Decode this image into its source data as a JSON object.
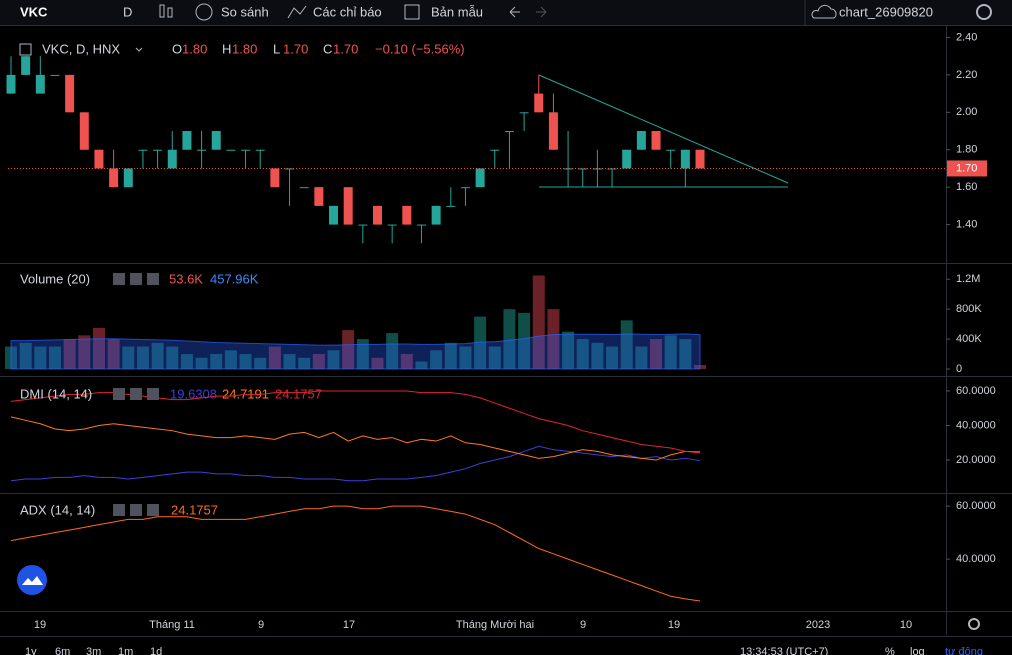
{
  "toolbar": {
    "symbol": "VKC",
    "interval": "D",
    "compare": "So sánh",
    "indicators": "Các chỉ báo",
    "templates": "Bản mẫu",
    "chart_name": "chart_26909820"
  },
  "price_pane": {
    "title": "VKC, D, HNX",
    "ohlc": [
      {
        "key": "O",
        "value": "1.80"
      },
      {
        "key": "H",
        "value": "1.80"
      },
      {
        "key": "L",
        "value": "1.70"
      },
      {
        "key": "C",
        "value": "1.70"
      }
    ],
    "change": "−0.10 (−5.56%)",
    "ylim": [
      1.2,
      2.44
    ],
    "yticks": [
      {
        "value": 2.4,
        "label": "2.40"
      },
      {
        "value": 2.2,
        "label": "2.20"
      },
      {
        "value": 2,
        "label": "2.00"
      },
      {
        "value": 1.8,
        "label": "1.80"
      },
      {
        "value": 1.6,
        "label": "1.60"
      },
      {
        "value": 1.4,
        "label": "1.40"
      }
    ],
    "last_price": "1.70",
    "up_color": "#26a69a",
    "down_color": "#ef5350",
    "candles": [
      {
        "open": 2.1,
        "high": 2.3,
        "low": 2.1,
        "close": 2.2
      },
      {
        "open": 2.2,
        "high": 2.3,
        "low": 2.2,
        "close": 2.3
      },
      {
        "open": 2.1,
        "high": 2.3,
        "low": 2.1,
        "close": 2.2
      },
      {
        "open": 2.2,
        "high": 2.2,
        "low": 2.2,
        "close": 2.2
      },
      {
        "open": 2.2,
        "high": 2.2,
        "low": 2.0,
        "close": 2.0
      },
      {
        "open": 2.0,
        "high": 2.0,
        "low": 1.8,
        "close": 1.8
      },
      {
        "open": 1.8,
        "high": 1.8,
        "low": 1.7,
        "close": 1.7
      },
      {
        "open": 1.7,
        "high": 1.8,
        "low": 1.6,
        "close": 1.6
      },
      {
        "open": 1.6,
        "high": 1.7,
        "low": 1.6,
        "close": 1.7
      },
      {
        "open": 1.8,
        "high": 1.8,
        "low": 1.7,
        "close": 1.8
      },
      {
        "open": 1.8,
        "high": 1.8,
        "low": 1.7,
        "close": 1.8
      },
      {
        "open": 1.7,
        "high": 1.9,
        "low": 1.7,
        "close": 1.8
      },
      {
        "open": 1.8,
        "high": 1.9,
        "low": 1.8,
        "close": 1.9
      },
      {
        "open": 1.8,
        "high": 1.9,
        "low": 1.7,
        "close": 1.8
      },
      {
        "open": 1.8,
        "high": 1.9,
        "low": 1.8,
        "close": 1.9
      },
      {
        "open": 1.8,
        "high": 1.8,
        "low": 1.8,
        "close": 1.8
      },
      {
        "open": 1.8,
        "high": 1.8,
        "low": 1.7,
        "close": 1.8
      },
      {
        "open": 1.8,
        "high": 1.8,
        "low": 1.7,
        "close": 1.8
      },
      {
        "open": 1.7,
        "high": 1.7,
        "low": 1.6,
        "close": 1.6
      },
      {
        "open": 1.7,
        "high": 1.7,
        "low": 1.5,
        "close": 1.7
      },
      {
        "open": 1.6,
        "high": 1.6,
        "low": 1.6,
        "close": 1.6
      },
      {
        "open": 1.6,
        "high": 1.6,
        "low": 1.5,
        "close": 1.5
      },
      {
        "open": 1.4,
        "high": 1.5,
        "low": 1.4,
        "close": 1.5
      },
      {
        "open": 1.6,
        "high": 1.6,
        "low": 1.4,
        "close": 1.4
      },
      {
        "open": 1.4,
        "high": 1.4,
        "low": 1.3,
        "close": 1.4
      },
      {
        "open": 1.5,
        "high": 1.5,
        "low": 1.4,
        "close": 1.4
      },
      {
        "open": 1.4,
        "high": 1.4,
        "low": 1.3,
        "close": 1.4
      },
      {
        "open": 1.5,
        "high": 1.5,
        "low": 1.4,
        "close": 1.4
      },
      {
        "open": 1.4,
        "high": 1.4,
        "low": 1.3,
        "close": 1.4
      },
      {
        "open": 1.4,
        "high": 1.5,
        "low": 1.4,
        "close": 1.5
      },
      {
        "open": 1.5,
        "high": 1.6,
        "low": 1.5,
        "close": 1.5
      },
      {
        "open": 1.6,
        "high": 1.6,
        "low": 1.5,
        "close": 1.6
      },
      {
        "open": 1.6,
        "high": 1.7,
        "low": 1.6,
        "close": 1.7
      },
      {
        "open": 1.8,
        "high": 1.8,
        "low": 1.7,
        "close": 1.8
      },
      {
        "open": 1.9,
        "high": 1.9,
        "low": 1.7,
        "close": 1.9
      },
      {
        "open": 2.0,
        "high": 2.0,
        "low": 1.9,
        "close": 2.0
      },
      {
        "open": 2.1,
        "high": 2.2,
        "low": 2.0,
        "close": 2.0
      },
      {
        "open": 2.0,
        "high": 2.1,
        "low": 1.8,
        "close": 1.8
      },
      {
        "open": 1.7,
        "high": 1.9,
        "low": 1.6,
        "close": 1.7
      },
      {
        "open": 1.7,
        "high": 1.7,
        "low": 1.6,
        "close": 1.7
      },
      {
        "open": 1.7,
        "high": 1.8,
        "low": 1.6,
        "close": 1.7
      },
      {
        "open": 1.7,
        "high": 1.7,
        "low": 1.6,
        "close": 1.7
      },
      {
        "open": 1.7,
        "high": 1.8,
        "low": 1.7,
        "close": 1.8
      },
      {
        "open": 1.8,
        "high": 1.9,
        "low": 1.8,
        "close": 1.9
      },
      {
        "open": 1.9,
        "high": 1.9,
        "low": 1.8,
        "close": 1.8
      },
      {
        "open": 1.8,
        "high": 1.8,
        "low": 1.7,
        "close": 1.8
      },
      {
        "open": 1.7,
        "high": 1.8,
        "low": 1.6,
        "close": 1.8
      },
      {
        "open": 1.8,
        "high": 1.8,
        "low": 1.7,
        "close": 1.7
      }
    ]
  },
  "volume_pane": {
    "title": "Volume (20)",
    "value_label": "53.6K",
    "ma_label": "457.96K",
    "ma_color": "#2962ff",
    "ylim": [
      -80000,
      1390000
    ],
    "yticks": [
      {
        "value": 1200000,
        "label": "1.2M"
      },
      {
        "value": 800000,
        "label": "800K"
      },
      {
        "value": 400000,
        "label": "400K"
      },
      0
    ],
    "values": [
      300000,
      350000,
      300000,
      300000,
      400000,
      450000,
      550000,
      400000,
      300000,
      300000,
      350000,
      300000,
      200000,
      150000,
      200000,
      250000,
      200000,
      150000,
      300000,
      200000,
      150000,
      200000,
      250000,
      520000,
      400000,
      150000,
      480000,
      200000,
      100000,
      250000,
      350000,
      300000,
      700000,
      300000,
      800000,
      750000,
      1250000,
      800000,
      500000,
      400000,
      350000,
      300000,
      650000,
      300000,
      400000,
      450000,
      400000,
      53600
    ],
    "ma": [
      380000,
      380000,
      385000,
      390000,
      395000,
      400000,
      405000,
      405000,
      400000,
      395000,
      390000,
      385000,
      375000,
      365000,
      355000,
      350000,
      345000,
      340000,
      335000,
      330000,
      325000,
      320000,
      320000,
      325000,
      330000,
      330000,
      335000,
      335000,
      330000,
      330000,
      335000,
      340000,
      360000,
      365000,
      385000,
      405000,
      440000,
      460000,
      465000,
      465000,
      465000,
      460000,
      470000,
      465000,
      460000,
      465000,
      470000,
      457960
    ]
  },
  "dmi_pane": {
    "title": "DMI (14, 14)",
    "ylim": [
      1.5,
      67.5
    ],
    "yticks": [
      {
        "value": 60,
        "label": "60.0000"
      },
      {
        "value": 40,
        "label": "40.0000"
      },
      {
        "value": 20,
        "label": "20.0000"
      }
    ],
    "series": [
      {
        "color": "#3f3fd8",
        "value_label": "19.6308",
        "values": [
          8,
          9,
          9,
          10,
          10,
          11,
          10,
          10,
          9,
          10,
          11,
          12,
          13,
          13,
          12,
          12,
          11,
          11,
          10,
          10,
          9,
          9,
          9,
          8,
          8,
          9,
          9,
          9,
          10,
          11,
          13,
          15,
          18,
          20,
          22,
          25,
          28,
          26,
          25,
          24,
          23,
          22,
          23,
          21,
          22,
          20,
          21,
          19.6308
        ]
      },
      {
        "color": "#ff7a1a",
        "value_label": "24.7191",
        "values": [
          45,
          43,
          41,
          38,
          37,
          38,
          40,
          41,
          40,
          39,
          38,
          37,
          35,
          34,
          33,
          33,
          34,
          33,
          32,
          35,
          36,
          33,
          36,
          31,
          34,
          32,
          33,
          30,
          32,
          31,
          34,
          30,
          29,
          27,
          25,
          23,
          21,
          22,
          24,
          26,
          25,
          23,
          22,
          21,
          20,
          23,
          25,
          24.7191
        ]
      },
      {
        "color": "#e0252f",
        "value_label": "24.1757",
        "values": [
          54,
          55,
          56,
          57,
          58,
          58,
          59,
          59,
          58,
          57,
          56,
          55,
          55,
          56,
          57,
          57,
          58,
          58,
          59,
          59,
          59,
          60,
          60,
          60,
          60,
          60,
          60,
          60,
          59,
          59,
          59,
          58,
          56,
          53,
          50,
          47,
          44,
          42,
          40,
          37,
          35,
          33,
          31,
          29,
          28,
          27,
          25,
          24.1757
        ]
      }
    ]
  },
  "adx_pane": {
    "title": "ADX (14, 14)",
    "ylim": [
      20.8,
      64.2
    ],
    "yticks": [
      {
        "value": 60,
        "label": "60.0000"
      },
      {
        "value": 40,
        "label": "40.0000"
      }
    ],
    "series": [
      {
        "color": "#ff6a1a",
        "value_label": "24.1757",
        "values": [
          47,
          48,
          49,
          50,
          51,
          52,
          53,
          54,
          55,
          55,
          56,
          56,
          56,
          55,
          55,
          55,
          55,
          56,
          57,
          58,
          59,
          59,
          60,
          60,
          59,
          59,
          60,
          60,
          60,
          59,
          58,
          57,
          55,
          53,
          50,
          47,
          44,
          42,
          40,
          38,
          36,
          34,
          32,
          30,
          28,
          26,
          25,
          24.1757
        ]
      }
    ]
  },
  "time_axis": [
    "19",
    "Tháng 11",
    "9",
    "17",
    "Tháng Mười hai",
    "9",
    "19",
    "2023",
    "10"
  ],
  "bottom_bar": {
    "ranges": [
      "1y",
      "6m",
      "3m",
      "1m",
      "1d"
    ],
    "clock": "13:34:53 (UTC+7)",
    "percent": "%",
    "log": "log",
    "auto": "tự động"
  }
}
